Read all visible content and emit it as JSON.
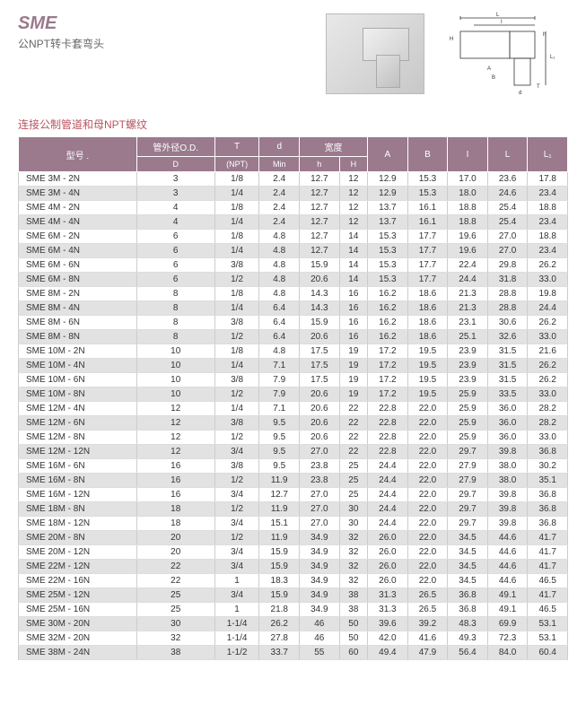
{
  "header": {
    "title": "SME",
    "subtitle": "公NPT转卡套弯头"
  },
  "section_title": "连接公制管道和母NPT螺纹",
  "table": {
    "headers": {
      "model": "型号 .",
      "d_od": "管外径O.D.",
      "d_od_sub": "D",
      "t": "T",
      "t_sub": "(NPT)",
      "d_min": "d",
      "d_min_sub": "Min",
      "width": "宽度",
      "h_lower": "h",
      "h_upper": "H",
      "a": "A",
      "b": "B",
      "i": "I",
      "l": "L",
      "l1": "L₁"
    },
    "rows": [
      {
        "m": "SME  3M -  2N",
        "d": "3",
        "t": "1/8",
        "dmin": "2.4",
        "hl": "12.7",
        "hu": "12",
        "a": "12.9",
        "b": "15.3",
        "i": "17.0",
        "l": "23.6",
        "l1": "17.8"
      },
      {
        "m": "SME  3M -  4N",
        "d": "3",
        "t": "1/4",
        "dmin": "2.4",
        "hl": "12.7",
        "hu": "12",
        "a": "12.9",
        "b": "15.3",
        "i": "18.0",
        "l": "24.6",
        "l1": "23.4"
      },
      {
        "m": "SME  4M -  2N",
        "d": "4",
        "t": "1/8",
        "dmin": "2.4",
        "hl": "12.7",
        "hu": "12",
        "a": "13.7",
        "b": "16.1",
        "i": "18.8",
        "l": "25.4",
        "l1": "18.8"
      },
      {
        "m": "SME  4M -  4N",
        "d": "4",
        "t": "1/4",
        "dmin": "2.4",
        "hl": "12.7",
        "hu": "12",
        "a": "13.7",
        "b": "16.1",
        "i": "18.8",
        "l": "25.4",
        "l1": "23.4"
      },
      {
        "m": "SME  6M -  2N",
        "d": "6",
        "t": "1/8",
        "dmin": "4.8",
        "hl": "12.7",
        "hu": "14",
        "a": "15.3",
        "b": "17.7",
        "i": "19.6",
        "l": "27.0",
        "l1": "18.8"
      },
      {
        "m": "SME  6M -  4N",
        "d": "6",
        "t": "1/4",
        "dmin": "4.8",
        "hl": "12.7",
        "hu": "14",
        "a": "15.3",
        "b": "17.7",
        "i": "19.6",
        "l": "27.0",
        "l1": "23.4"
      },
      {
        "m": "SME  6M -  6N",
        "d": "6",
        "t": "3/8",
        "dmin": "4.8",
        "hl": "15.9",
        "hu": "14",
        "a": "15.3",
        "b": "17.7",
        "i": "22.4",
        "l": "29.8",
        "l1": "26.2"
      },
      {
        "m": "SME  6M -  8N",
        "d": "6",
        "t": "1/2",
        "dmin": "4.8",
        "hl": "20.6",
        "hu": "14",
        "a": "15.3",
        "b": "17.7",
        "i": "24.4",
        "l": "31.8",
        "l1": "33.0"
      },
      {
        "m": "SME  8M -  2N",
        "d": "8",
        "t": "1/8",
        "dmin": "4.8",
        "hl": "14.3",
        "hu": "16",
        "a": "16.2",
        "b": "18.6",
        "i": "21.3",
        "l": "28.8",
        "l1": "19.8"
      },
      {
        "m": "SME  8M -  4N",
        "d": "8",
        "t": "1/4",
        "dmin": "6.4",
        "hl": "14.3",
        "hu": "16",
        "a": "16.2",
        "b": "18.6",
        "i": "21.3",
        "l": "28.8",
        "l1": "24.4"
      },
      {
        "m": "SME  8M -  6N",
        "d": "8",
        "t": "3/8",
        "dmin": "6.4",
        "hl": "15.9",
        "hu": "16",
        "a": "16.2",
        "b": "18.6",
        "i": "23.1",
        "l": "30.6",
        "l1": "26.2"
      },
      {
        "m": "SME  8M -  8N",
        "d": "8",
        "t": "1/2",
        "dmin": "6.4",
        "hl": "20.6",
        "hu": "16",
        "a": "16.2",
        "b": "18.6",
        "i": "25.1",
        "l": "32.6",
        "l1": "33.0"
      },
      {
        "m": "SME 10M -  2N",
        "d": "10",
        "t": "1/8",
        "dmin": "4.8",
        "hl": "17.5",
        "hu": "19",
        "a": "17.2",
        "b": "19.5",
        "i": "23.9",
        "l": "31.5",
        "l1": "21.6"
      },
      {
        "m": "SME 10M -  4N",
        "d": "10",
        "t": "1/4",
        "dmin": "7.1",
        "hl": "17.5",
        "hu": "19",
        "a": "17.2",
        "b": "19.5",
        "i": "23.9",
        "l": "31.5",
        "l1": "26.2"
      },
      {
        "m": "SME 10M -  6N",
        "d": "10",
        "t": "3/8",
        "dmin": "7.9",
        "hl": "17.5",
        "hu": "19",
        "a": "17.2",
        "b": "19.5",
        "i": "23.9",
        "l": "31.5",
        "l1": "26.2"
      },
      {
        "m": "SME 10M -  8N",
        "d": "10",
        "t": "1/2",
        "dmin": "7.9",
        "hl": "20.6",
        "hu": "19",
        "a": "17.2",
        "b": "19.5",
        "i": "25.9",
        "l": "33.5",
        "l1": "33.0"
      },
      {
        "m": "SME 12M -  4N",
        "d": "12",
        "t": "1/4",
        "dmin": "7.1",
        "hl": "20.6",
        "hu": "22",
        "a": "22.8",
        "b": "22.0",
        "i": "25.9",
        "l": "36.0",
        "l1": "28.2"
      },
      {
        "m": "SME 12M -  6N",
        "d": "12",
        "t": "3/8",
        "dmin": "9.5",
        "hl": "20.6",
        "hu": "22",
        "a": "22.8",
        "b": "22.0",
        "i": "25.9",
        "l": "36.0",
        "l1": "28.2"
      },
      {
        "m": "SME 12M -  8N",
        "d": "12",
        "t": "1/2",
        "dmin": "9.5",
        "hl": "20.6",
        "hu": "22",
        "a": "22.8",
        "b": "22.0",
        "i": "25.9",
        "l": "36.0",
        "l1": "33.0"
      },
      {
        "m": "SME 12M - 12N",
        "d": "12",
        "t": "3/4",
        "dmin": "9.5",
        "hl": "27.0",
        "hu": "22",
        "a": "22.8",
        "b": "22.0",
        "i": "29.7",
        "l": "39.8",
        "l1": "36.8"
      },
      {
        "m": "SME 16M -  6N",
        "d": "16",
        "t": "3/8",
        "dmin": "9.5",
        "hl": "23.8",
        "hu": "25",
        "a": "24.4",
        "b": "22.0",
        "i": "27.9",
        "l": "38.0",
        "l1": "30.2"
      },
      {
        "m": "SME 16M -  8N",
        "d": "16",
        "t": "1/2",
        "dmin": "11.9",
        "hl": "23.8",
        "hu": "25",
        "a": "24.4",
        "b": "22.0",
        "i": "27.9",
        "l": "38.0",
        "l1": "35.1"
      },
      {
        "m": "SME 16M - 12N",
        "d": "16",
        "t": "3/4",
        "dmin": "12.7",
        "hl": "27.0",
        "hu": "25",
        "a": "24.4",
        "b": "22.0",
        "i": "29.7",
        "l": "39.8",
        "l1": "36.8"
      },
      {
        "m": "SME 18M -  8N",
        "d": "18",
        "t": "1/2",
        "dmin": "11.9",
        "hl": "27.0",
        "hu": "30",
        "a": "24.4",
        "b": "22.0",
        "i": "29.7",
        "l": "39.8",
        "l1": "36.8"
      },
      {
        "m": "SME 18M - 12N",
        "d": "18",
        "t": "3/4",
        "dmin": "15.1",
        "hl": "27.0",
        "hu": "30",
        "a": "24.4",
        "b": "22.0",
        "i": "29.7",
        "l": "39.8",
        "l1": "36.8"
      },
      {
        "m": "SME 20M -  8N",
        "d": "20",
        "t": "1/2",
        "dmin": "11.9",
        "hl": "34.9",
        "hu": "32",
        "a": "26.0",
        "b": "22.0",
        "i": "34.5",
        "l": "44.6",
        "l1": "41.7"
      },
      {
        "m": "SME 20M - 12N",
        "d": "20",
        "t": "3/4",
        "dmin": "15.9",
        "hl": "34.9",
        "hu": "32",
        "a": "26.0",
        "b": "22.0",
        "i": "34.5",
        "l": "44.6",
        "l1": "41.7"
      },
      {
        "m": "SME 22M - 12N",
        "d": "22",
        "t": "3/4",
        "dmin": "15.9",
        "hl": "34.9",
        "hu": "32",
        "a": "26.0",
        "b": "22.0",
        "i": "34.5",
        "l": "44.6",
        "l1": "41.7"
      },
      {
        "m": "SME 22M - 16N",
        "d": "22",
        "t": "1",
        "dmin": "18.3",
        "hl": "34.9",
        "hu": "32",
        "a": "26.0",
        "b": "22.0",
        "i": "34.5",
        "l": "44.6",
        "l1": "46.5"
      },
      {
        "m": "SME 25M - 12N",
        "d": "25",
        "t": "3/4",
        "dmin": "15.9",
        "hl": "34.9",
        "hu": "38",
        "a": "31.3",
        "b": "26.5",
        "i": "36.8",
        "l": "49.1",
        "l1": "41.7"
      },
      {
        "m": "SME 25M - 16N",
        "d": "25",
        "t": "1",
        "dmin": "21.8",
        "hl": "34.9",
        "hu": "38",
        "a": "31.3",
        "b": "26.5",
        "i": "36.8",
        "l": "49.1",
        "l1": "46.5"
      },
      {
        "m": "SME 30M - 20N",
        "d": "30",
        "t": "1-1/4",
        "dmin": "26.2",
        "hl": "46",
        "hu": "50",
        "a": "39.6",
        "b": "39.2",
        "i": "48.3",
        "l": "69.9",
        "l1": "53.1"
      },
      {
        "m": "SME 32M - 20N",
        "d": "32",
        "t": "1-1/4",
        "dmin": "27.8",
        "hl": "46",
        "hu": "50",
        "a": "42.0",
        "b": "41.6",
        "i": "49.3",
        "l": "72.3",
        "l1": "53.1"
      },
      {
        "m": "SME 38M - 24N",
        "d": "38",
        "t": "1-1/2",
        "dmin": "33.7",
        "hl": "55",
        "hu": "60",
        "a": "49.4",
        "b": "47.9",
        "i": "56.4",
        "l": "84.0",
        "l1": "60.4"
      }
    ]
  }
}
